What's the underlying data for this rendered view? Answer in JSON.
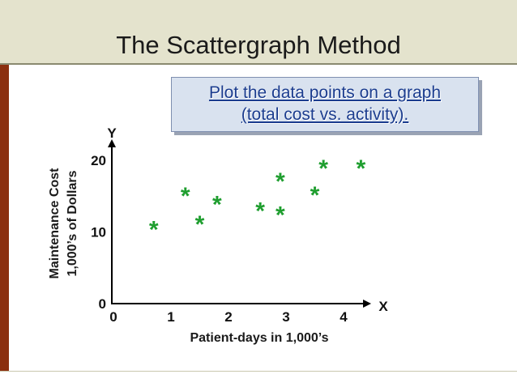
{
  "slide": {
    "title": "The Scattergraph Method",
    "callout_line1": "Plot the data points on a graph",
    "callout_line2": "(total cost vs. activity).",
    "colors": {
      "header_band": "#e4e3cd",
      "left_bar": "#8b2f0f",
      "callout_text": "#1c3d8f",
      "callout_bg": "#d9e2ef",
      "point": "#1f9e2f"
    }
  },
  "chart_data": {
    "type": "scatter",
    "title": "",
    "xlabel": "Patient-days in 1,000’s",
    "ylabel_line1": "Maintenance Cost",
    "ylabel_line2": "1,000’s of Dollars",
    "x_axis_letter": "X",
    "y_axis_letter": "Y",
    "xlim": [
      0,
      4.5
    ],
    "ylim": [
      0,
      20
    ],
    "x_ticks": [
      "0",
      "1",
      "2",
      "3",
      "4"
    ],
    "y_ticks": [
      "0",
      "10",
      "20"
    ],
    "marker": "*",
    "grid": false,
    "x": [
      0.7,
      1.25,
      1.5,
      1.8,
      2.55,
      2.9,
      2.9,
      3.5,
      3.65,
      4.3
    ],
    "y": [
      10.8,
      15.5,
      11.5,
      14.3,
      13.4,
      17.5,
      12.8,
      15.6,
      19.3,
      19.3
    ]
  }
}
